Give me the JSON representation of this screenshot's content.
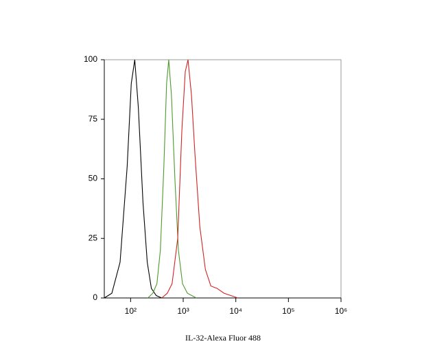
{
  "chart_data": {
    "type": "line",
    "x_label": "IL-32-Alexa Fluor 488",
    "xscale": "log",
    "xlim": [
      31.6,
      1000000
    ],
    "xticks": [
      {
        "value": 100,
        "label": "10²"
      },
      {
        "value": 1000,
        "label": "10³"
      },
      {
        "value": 10000,
        "label": "10⁴"
      },
      {
        "value": 100000,
        "label": "10⁵"
      },
      {
        "value": 1000000,
        "label": "10⁶"
      }
    ],
    "ylim": [
      0,
      100
    ],
    "yticks": [
      0,
      25,
      50,
      75,
      100
    ],
    "series": [
      {
        "color": "#000000",
        "x": [
          31.6,
          44,
          63,
          86,
          103,
          120,
          140,
          172,
          207,
          248,
          307,
          391
        ],
        "values": [
          0,
          2,
          15,
          55,
          90,
          100,
          80,
          40,
          15,
          4,
          1,
          0
        ]
      },
      {
        "color": "#4a9a2a",
        "x": [
          213,
          264,
          316,
          368,
          428,
          483,
          530,
          598,
          695,
          809,
          970,
          1200,
          1778
        ],
        "values": [
          0,
          2,
          6,
          20,
          55,
          90,
          100,
          85,
          50,
          20,
          6,
          2,
          0
        ]
      },
      {
        "color": "#d42020",
        "x": [
          391,
          498,
          615,
          785,
          942,
          1095,
          1235,
          1439,
          1675,
          2070,
          2636,
          3357,
          4411,
          5970,
          10940
        ],
        "values": [
          0,
          2,
          6,
          25,
          70,
          95,
          100,
          85,
          60,
          30,
          12,
          5,
          4,
          2,
          0
        ]
      }
    ]
  }
}
